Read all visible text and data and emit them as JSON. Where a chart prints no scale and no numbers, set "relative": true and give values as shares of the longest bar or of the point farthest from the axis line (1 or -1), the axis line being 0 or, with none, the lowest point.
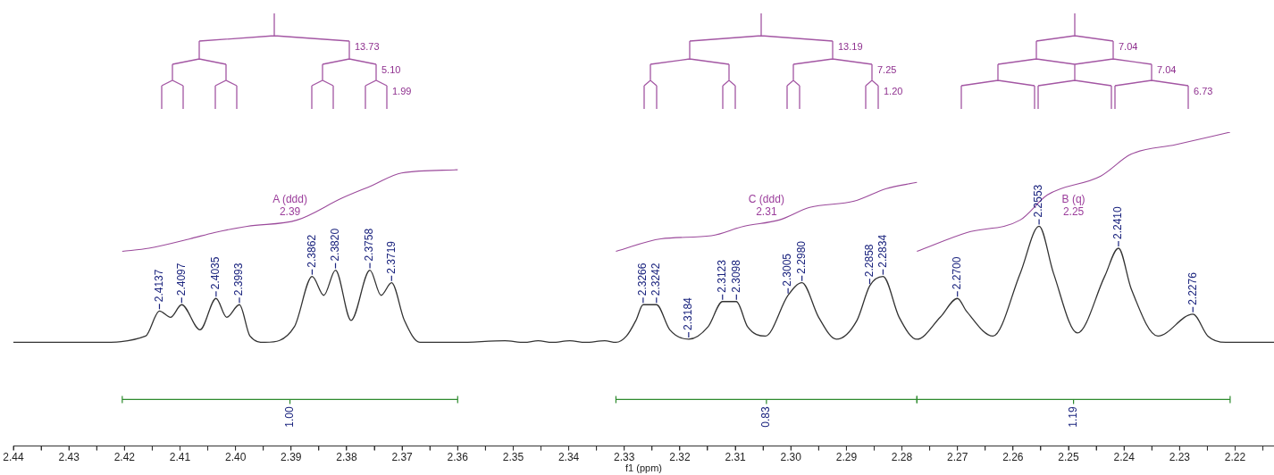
{
  "chart_data": {
    "type": "line",
    "relative": true,
    "xlabel": "f1 (ppm)",
    "xlim": [
      2.44,
      2.213
    ],
    "xticks": [
      {
        "value": 2.44,
        "label": "2.44"
      },
      {
        "value": 2.435,
        "label": null
      },
      {
        "value": 2.43,
        "label": "2.43"
      },
      {
        "value": 2.425,
        "label": null
      },
      {
        "value": 2.42,
        "label": "2.42"
      },
      {
        "value": 2.415,
        "label": null
      },
      {
        "value": 2.41,
        "label": "2.41"
      },
      {
        "value": 2.405,
        "label": null
      },
      {
        "value": 2.4,
        "label": "2.40"
      },
      {
        "value": 2.395,
        "label": null
      },
      {
        "value": 2.39,
        "label": "2.39"
      },
      {
        "value": 2.385,
        "label": null
      },
      {
        "value": 2.38,
        "label": "2.38"
      },
      {
        "value": 2.375,
        "label": null
      },
      {
        "value": 2.37,
        "label": "2.37"
      },
      {
        "value": 2.365,
        "label": null
      },
      {
        "value": 2.36,
        "label": "2.36"
      },
      {
        "value": 2.355,
        "label": null
      },
      {
        "value": 2.35,
        "label": "2.35"
      },
      {
        "value": 2.345,
        "label": null
      },
      {
        "value": 2.34,
        "label": "2.34"
      },
      {
        "value": 2.335,
        "label": null
      },
      {
        "value": 2.33,
        "label": "2.33"
      },
      {
        "value": 2.325,
        "label": null
      },
      {
        "value": 2.32,
        "label": "2.32"
      },
      {
        "value": 2.315,
        "label": null
      },
      {
        "value": 2.31,
        "label": "2.31"
      },
      {
        "value": 2.305,
        "label": null
      },
      {
        "value": 2.3,
        "label": "2.30"
      },
      {
        "value": 2.295,
        "label": null
      },
      {
        "value": 2.29,
        "label": "2.29"
      },
      {
        "value": 2.285,
        "label": null
      },
      {
        "value": 2.28,
        "label": "2.28"
      },
      {
        "value": 2.275,
        "label": null
      },
      {
        "value": 2.27,
        "label": "2.27"
      },
      {
        "value": 2.265,
        "label": null
      },
      {
        "value": 2.26,
        "label": "2.26"
      },
      {
        "value": 2.255,
        "label": null
      },
      {
        "value": 2.25,
        "label": "2.25"
      },
      {
        "value": 2.245,
        "label": null
      },
      {
        "value": 2.24,
        "label": "2.24"
      },
      {
        "value": 2.235,
        "label": null
      },
      {
        "value": 2.23,
        "label": "2.23"
      },
      {
        "value": 2.225,
        "label": null
      },
      {
        "value": 2.22,
        "label": "2.22"
      },
      {
        "value": 2.215,
        "label": null
      }
    ],
    "series": [
      {
        "color": "#333333",
        "x": [
          2.44,
          2.425,
          2.4162,
          2.4137,
          2.4117,
          2.4097,
          2.4064,
          2.4035,
          2.4016,
          2.3993,
          2.3974,
          2.3947,
          2.3894,
          2.3862,
          2.3841,
          2.382,
          2.3792,
          2.3758,
          2.3738,
          2.3719,
          2.3696,
          2.3668,
          2.36,
          2.3515,
          2.348,
          2.3455,
          2.343,
          2.3398,
          2.337,
          2.3335,
          2.3315,
          2.3296,
          2.3279,
          2.3266,
          2.3242,
          2.3218,
          2.3184,
          2.3149,
          2.3123,
          2.3098,
          2.3078,
          2.3046,
          2.3005,
          2.298,
          2.295,
          2.2918,
          2.2881,
          2.2858,
          2.2834,
          2.2805,
          2.2773,
          2.2731,
          2.27,
          2.2684,
          2.2636,
          2.2587,
          2.2553,
          2.2527,
          2.2484,
          2.2435,
          2.241,
          2.2387,
          2.2339,
          2.2276,
          2.2249,
          2.2217,
          2.213
        ],
        "values": [
          0.33,
          0.33,
          0.35,
          0.43,
          0.41,
          0.45,
          0.37,
          0.47,
          0.41,
          0.45,
          0.35,
          0.33,
          0.38,
          0.54,
          0.48,
          0.56,
          0.4,
          0.56,
          0.48,
          0.52,
          0.4,
          0.33,
          0.33,
          0.335,
          0.33,
          0.335,
          0.33,
          0.335,
          0.33,
          0.335,
          0.33,
          0.35,
          0.4,
          0.45,
          0.45,
          0.37,
          0.34,
          0.38,
          0.46,
          0.46,
          0.38,
          0.35,
          0.48,
          0.52,
          0.41,
          0.34,
          0.4,
          0.51,
          0.54,
          0.41,
          0.34,
          0.41,
          0.47,
          0.43,
          0.35,
          0.55,
          0.7,
          0.55,
          0.36,
          0.54,
          0.63,
          0.5,
          0.35,
          0.42,
          0.35,
          0.33,
          0.33
        ]
      },
      {
        "color": "#9b4a9b",
        "x": [
          2.4204,
          2.4156,
          2.4082,
          2.4038,
          2.3979,
          2.3889,
          2.3808,
          2.3754,
          2.3701,
          2.36
        ],
        "values": [
          0.62,
          0.63,
          0.66,
          0.68,
          0.7,
          0.72,
          0.79,
          0.83,
          0.87,
          0.88
        ]
      },
      {
        "color": "#9b4a9b",
        "x": [
          2.3315,
          2.3234,
          2.3143,
          2.3085,
          2.3021,
          2.2966,
          2.2886,
          2.2828,
          2.2773
        ],
        "values": [
          0.62,
          0.66,
          0.67,
          0.7,
          0.72,
          0.76,
          0.78,
          0.82,
          0.84
        ]
      },
      {
        "color": "#9b4a9b",
        "x": [
          2.2773,
          2.2683,
          2.2587,
          2.2538,
          2.2442,
          2.2387,
          2.2307,
          2.2209
        ],
        "values": [
          0.62,
          0.68,
          0.72,
          0.8,
          0.86,
          0.93,
          0.96,
          1.0
        ]
      }
    ],
    "annotations": [
      "A (ddd)\n2.39",
      "C (ddd)\n2.31",
      "B (q)\n2.25",
      "13.73",
      "5.10",
      "1.99",
      "13.19",
      "7.25",
      "1.20",
      "7.04",
      "7.04",
      "6.73",
      "1.00",
      "0.83",
      "1.19",
      {
        "text": "2.4137",
        "x": 2.4137,
        "y": 0.43
      },
      {
        "text": "2.4097",
        "x": 2.4097,
        "y": 0.45
      },
      {
        "text": "2.4035",
        "x": 2.4035,
        "y": 0.47
      },
      {
        "text": "2.3993",
        "x": 2.3993,
        "y": 0.45
      },
      {
        "text": "2.3862",
        "x": 2.3862,
        "y": 0.54
      },
      {
        "text": "2.3820",
        "x": 2.382,
        "y": 0.56
      },
      {
        "text": "2.3758",
        "x": 2.3758,
        "y": 0.56
      },
      {
        "text": "2.3719",
        "x": 2.3719,
        "y": 0.52
      },
      {
        "text": "2.3266",
        "x": 2.3266,
        "y": 0.45
      },
      {
        "text": "2.3242",
        "x": 2.3242,
        "y": 0.45
      },
      {
        "text": "2.3184",
        "x": 2.3184,
        "y": 0.34
      },
      {
        "text": "2.3123",
        "x": 2.3123,
        "y": 0.46
      },
      {
        "text": "2.3098",
        "x": 2.3098,
        "y": 0.46
      },
      {
        "text": "2.3005",
        "x": 2.3005,
        "y": 0.48
      },
      {
        "text": "2.2980",
        "x": 2.298,
        "y": 0.52
      },
      {
        "text": "2.2858",
        "x": 2.2858,
        "y": 0.51
      },
      {
        "text": "2.2834",
        "x": 2.2834,
        "y": 0.54
      },
      {
        "text": "2.2700",
        "x": 2.27,
        "y": 0.47
      },
      {
        "text": "2.2553",
        "x": 2.2553,
        "y": 0.7
      },
      {
        "text": "2.2410",
        "x": 2.241,
        "y": 0.63
      },
      {
        "text": "2.2276",
        "x": 2.2276,
        "y": 0.42
      }
    ]
  }
}
